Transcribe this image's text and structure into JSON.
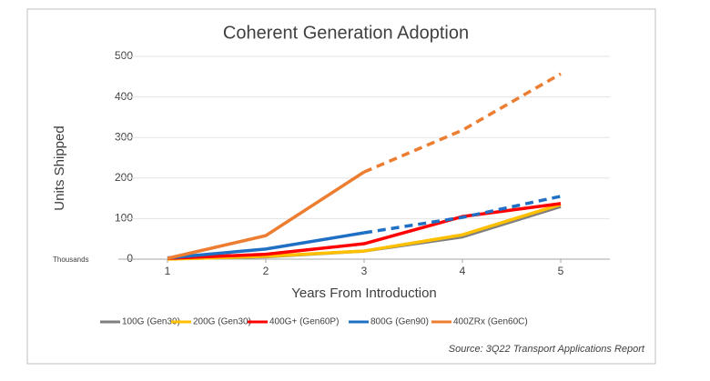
{
  "chart_data": {
    "type": "line",
    "title": "Coherent Generation Adoption",
    "x_label": "Years From Introduction",
    "y_label": "Units  Shipped",
    "y_unit_note": "Thousands",
    "source": "Source: 3Q22 Transport Applications Report",
    "x": [
      1,
      2,
      3,
      4,
      5
    ],
    "xlim": [
      0.5,
      5.5
    ],
    "xticks": [
      1,
      2,
      3,
      4,
      5
    ],
    "ylim": [
      0,
      500
    ],
    "yticks": [
      0,
      100,
      200,
      300,
      400,
      500
    ],
    "grid": true,
    "series": [
      {
        "name": "100G (Gen30)",
        "color": "#7f7f7f",
        "values": [
          1,
          6,
          20,
          55,
          130
        ]
      },
      {
        "name": "200G (Gen30)",
        "color": "#ffc000",
        "values": [
          0,
          7,
          20,
          60,
          135
        ]
      },
      {
        "name": "400G+ (Gen60P)",
        "color": "#ff0000",
        "values": [
          2,
          12,
          38,
          105,
          137
        ]
      },
      {
        "name": "800G (Gen90)",
        "color": "#1f6fc5",
        "values": [
          3,
          25,
          65,
          103,
          155
        ],
        "dashed_from": 2
      },
      {
        "name": "400ZRx (Gen60C)",
        "color": "#ed7d31",
        "values": [
          2,
          58,
          215,
          318,
          457
        ],
        "dashed_from": 2
      }
    ]
  }
}
